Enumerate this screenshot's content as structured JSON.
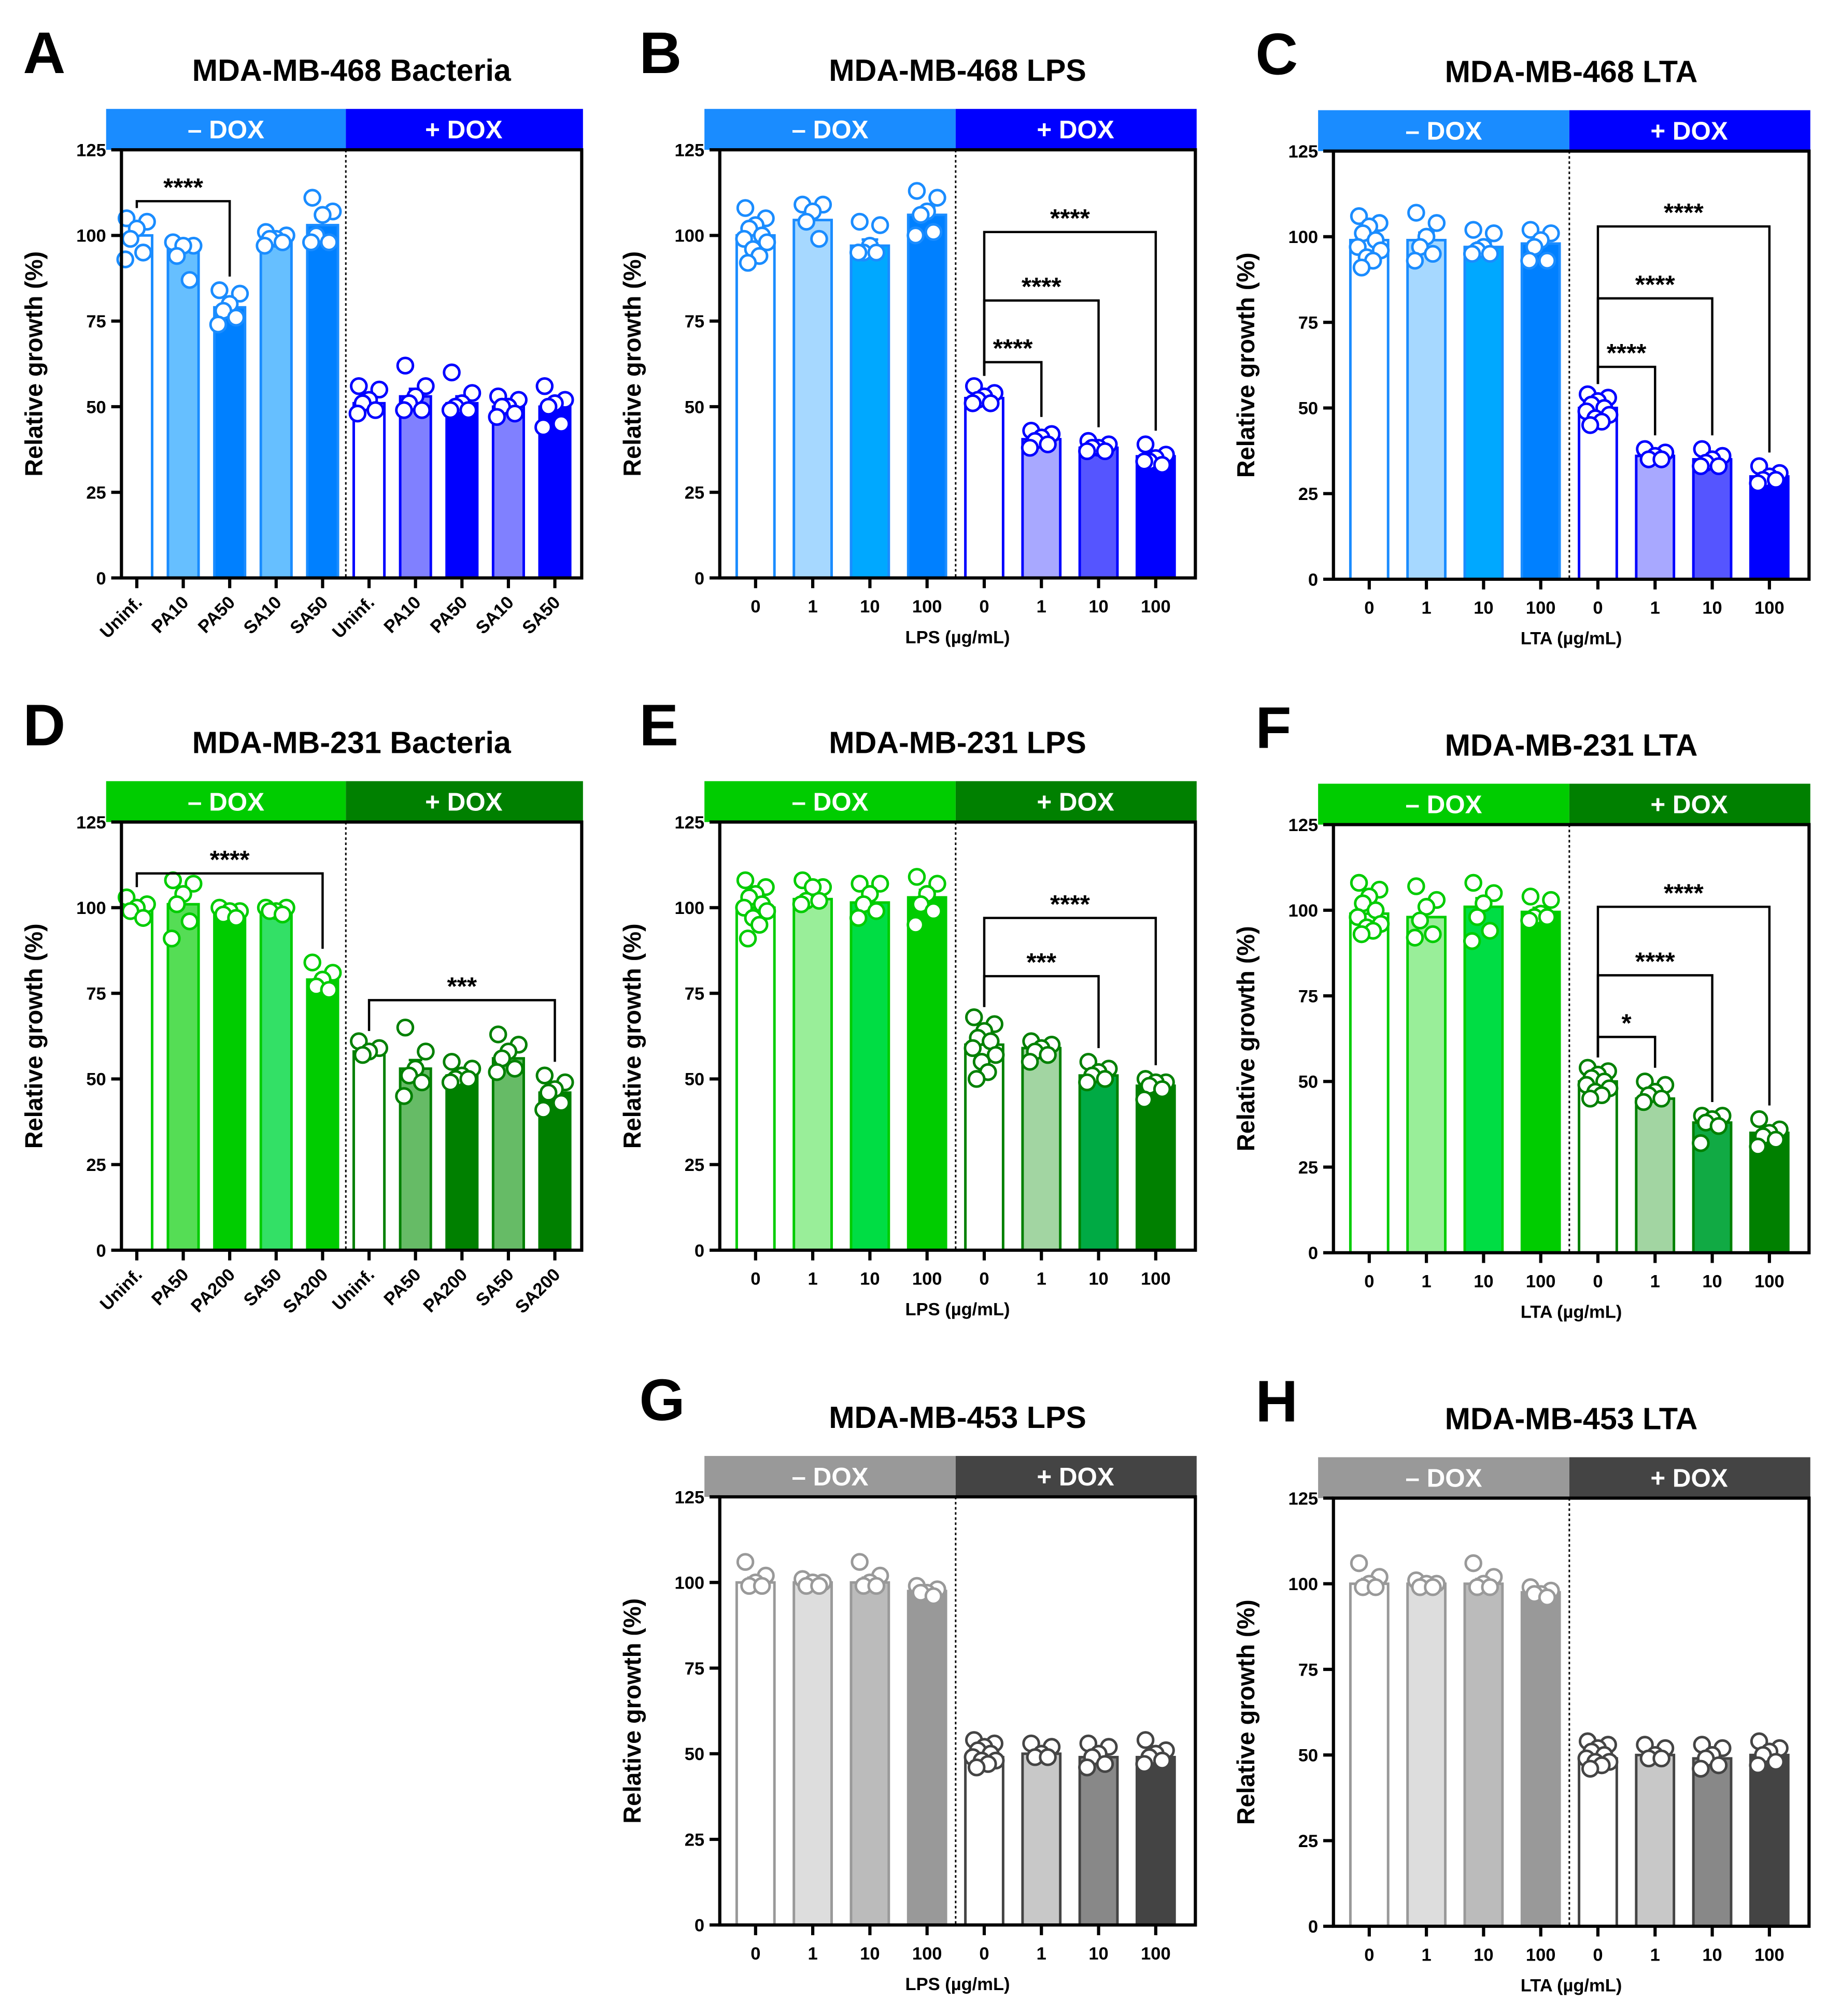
{
  "chart_data": [
    {
      "letter": "A",
      "type": "bar",
      "title": "MDA-MB-468 Bacteria",
      "header_labels": [
        "– DOX",
        "+ DOX"
      ],
      "header_colors": [
        "#1a8cff",
        "#0000ff"
      ],
      "split": 5,
      "categories": [
        "Uninf.",
        "PA10",
        "PA50",
        "SA10",
        "SA50",
        "Uninf.",
        "PA10",
        "PA50",
        "SA10",
        "SA50"
      ],
      "rotate_labels": true,
      "xlabel": "",
      "ylabel": "Relative growth (%)",
      "ylim": [
        0,
        125
      ],
      "yticks": [
        "0",
        "25",
        "50",
        "75",
        "100",
        "125"
      ],
      "means": [
        100,
        96,
        79,
        99,
        103,
        51,
        53,
        51,
        50,
        50
      ],
      "sem": [
        2,
        2,
        1.5,
        0.6,
        2,
        1.2,
        2.2,
        2,
        1,
        2
      ],
      "points": [
        [
          105,
          104,
          102,
          99,
          95,
          93
        ],
        [
          98,
          97,
          97,
          94,
          87
        ],
        [
          84,
          83,
          80,
          78,
          76,
          74
        ],
        [
          101,
          100,
          99,
          99,
          98,
          97
        ],
        [
          111,
          107,
          106,
          100,
          98,
          98
        ],
        [
          56,
          55,
          52,
          51,
          49,
          48
        ],
        [
          62,
          56,
          53,
          51,
          49,
          49
        ],
        [
          60,
          54,
          51,
          50,
          49,
          49
        ],
        [
          53,
          52,
          50,
          50,
          48,
          47
        ],
        [
          56,
          52,
          51,
          50,
          45,
          44
        ]
      ],
      "bar_fills": [
        "#ffffff",
        "#66bfff",
        "#0080ff",
        "#66bfff",
        "#0080ff",
        "#ffffff",
        "#8080ff",
        "#0000ff",
        "#8080ff",
        "#0000ff"
      ],
      "significance": [
        {
          "from": 0,
          "to": 2,
          "y": 110,
          "label": "****"
        }
      ]
    },
    {
      "letter": "B",
      "type": "bar",
      "title": "MDA-MB-468 LPS",
      "header_labels": [
        "– DOX",
        "+ DOX"
      ],
      "header_colors": [
        "#1a8cff",
        "#0000ff"
      ],
      "split": 4,
      "categories": [
        "0",
        "1",
        "10",
        "100",
        "0",
        "1",
        "10",
        "100"
      ],
      "rotate_labels": false,
      "xlabel": "LPS (µg/mL)",
      "ylabel": "Relative growth (%)",
      "ylim": [
        0,
        125
      ],
      "yticks": [
        "0",
        "25",
        "50",
        "75",
        "100",
        "125"
      ],
      "means": [
        100,
        104.5,
        97,
        106,
        52.5,
        40.5,
        38,
        35.5
      ],
      "sem": [
        1.6,
        2,
        1.8,
        2.2,
        0.8,
        0.8,
        0.6,
        0.9
      ],
      "points": [
        [
          108,
          105,
          103,
          102,
          100,
          99,
          98,
          96,
          94,
          92
        ],
        [
          109,
          109,
          107,
          104,
          99
        ],
        [
          104,
          103,
          97,
          95,
          95,
          95
        ],
        [
          113,
          111,
          107,
          106,
          101,
          100
        ],
        [
          56,
          54,
          53,
          52,
          51,
          51
        ],
        [
          43,
          42,
          41,
          40,
          39,
          38
        ],
        [
          40,
          39,
          38,
          38,
          37,
          37
        ],
        [
          39,
          36,
          35,
          34,
          33,
          34
        ]
      ],
      "bar_fills": [
        "#ffffff",
        "#a6d8ff",
        "#00a8ff",
        "#0080ff",
        "#ffffff",
        "#a8a8ff",
        "#5555ff",
        "#0000ff"
      ],
      "significance": [
        {
          "from": 4,
          "to": 5,
          "y": 63,
          "label": "****"
        },
        {
          "from": 4,
          "to": 6,
          "y": 81,
          "label": "****"
        },
        {
          "from": 4,
          "to": 7,
          "y": 101,
          "label": "****"
        }
      ]
    },
    {
      "letter": "C",
      "type": "bar",
      "title": "MDA-MB-468 LTA",
      "header_labels": [
        "– DOX",
        "+ DOX"
      ],
      "header_colors": [
        "#1a8cff",
        "#0000ff"
      ],
      "split": 4,
      "categories": [
        "0",
        "1",
        "10",
        "100",
        "0",
        "1",
        "10",
        "100"
      ],
      "rotate_labels": false,
      "xlabel": "LTA (µg/mL)",
      "ylabel": "Relative growth (%)",
      "ylim": [
        0,
        125
      ],
      "yticks": [
        "0",
        "25",
        "50",
        "75",
        "100",
        "125"
      ],
      "means": [
        99,
        99,
        97,
        98,
        50,
        36,
        35,
        30
      ],
      "sem": [
        1.5,
        2.2,
        1.3,
        1.7,
        1,
        0.6,
        0.9,
        0.8
      ],
      "points": [
        [
          106,
          104,
          103,
          101,
          99,
          97,
          96,
          94,
          93,
          91
        ],
        [
          107,
          104,
          100,
          97,
          95,
          93
        ],
        [
          102,
          101,
          97,
          96,
          95,
          95
        ],
        [
          102,
          101,
          99,
          97,
          93,
          93
        ],
        [
          54,
          53,
          52,
          51,
          50,
          49,
          48,
          47,
          46,
          45
        ],
        [
          38,
          37,
          36,
          35,
          35
        ],
        [
          38,
          36,
          35,
          34,
          33,
          33
        ],
        [
          33,
          31,
          30,
          29,
          29,
          28
        ]
      ],
      "bar_fills": [
        "#ffffff",
        "#a6d8ff",
        "#00a8ff",
        "#0080ff",
        "#ffffff",
        "#a8a8ff",
        "#5555ff",
        "#0000ff"
      ],
      "significance": [
        {
          "from": 4,
          "to": 5,
          "y": 62,
          "label": "****"
        },
        {
          "from": 4,
          "to": 6,
          "y": 82,
          "label": "****"
        },
        {
          "from": 4,
          "to": 7,
          "y": 103,
          "label": "****"
        }
      ]
    },
    {
      "letter": "D",
      "type": "bar",
      "title": "MDA-MB-231 Bacteria",
      "header_labels": [
        "– DOX",
        "+ DOX"
      ],
      "header_colors": [
        "#00cc00",
        "#008000"
      ],
      "split": 5,
      "categories": [
        "Uninf.",
        "PA50",
        "PA200",
        "SA50",
        "SA200",
        "Uninf.",
        "PA50",
        "PA200",
        "SA50",
        "SA200"
      ],
      "rotate_labels": true,
      "xlabel": "",
      "ylabel": "Relative growth (%)",
      "ylim": [
        0,
        125
      ],
      "yticks": [
        "0",
        "25",
        "50",
        "75",
        "100",
        "125"
      ],
      "means": [
        100,
        101,
        99,
        99,
        79,
        58,
        53,
        51,
        56,
        46
      ],
      "sem": [
        1,
        2.5,
        0.6,
        0.4,
        1.5,
        0.8,
        2.5,
        1,
        1.7,
        1.5
      ],
      "points": [
        [
          103,
          101,
          100,
          99,
          97
        ],
        [
          108,
          107,
          104,
          101,
          96,
          91
        ],
        [
          100,
          99,
          99,
          98,
          97
        ],
        [
          100,
          100,
          99,
          99,
          98
        ],
        [
          84,
          81,
          79,
          77,
          76
        ],
        [
          61,
          59,
          58,
          57
        ],
        [
          65,
          58,
          53,
          51,
          49,
          45
        ],
        [
          55,
          53,
          51,
          50,
          50,
          49
        ],
        [
          63,
          60,
          58,
          56,
          53,
          52
        ],
        [
          51,
          49,
          47,
          46,
          43,
          41
        ]
      ],
      "bar_fills": [
        "#ffffff",
        "#55dd55",
        "#00cc00",
        "#33e066",
        "#00cc00",
        "#ffffff",
        "#66bb66",
        "#008000",
        "#66bb66",
        "#008000"
      ],
      "significance": [
        {
          "from": 0,
          "to": 4,
          "y": 110,
          "label": "****"
        },
        {
          "from": 5,
          "to": 9,
          "y": 73,
          "label": "***"
        }
      ]
    },
    {
      "letter": "E",
      "type": "bar",
      "title": "MDA-MB-231 LPS",
      "header_labels": [
        "– DOX",
        "+ DOX"
      ],
      "header_colors": [
        "#00cc00",
        "#008000"
      ],
      "split": 4,
      "categories": [
        "0",
        "1",
        "10",
        "100",
        "0",
        "1",
        "10",
        "100"
      ],
      "rotate_labels": false,
      "xlabel": "LPS (µg/mL)",
      "ylabel": "Relative growth (%)",
      "ylim": [
        0,
        125
      ],
      "yticks": [
        "0",
        "25",
        "50",
        "75",
        "100",
        "125"
      ],
      "means": [
        100,
        102.5,
        101.5,
        103,
        60,
        59,
        51,
        48
      ],
      "sem": [
        1.6,
        1.2,
        1.8,
        2.2,
        1.8,
        0.9,
        0.9,
        0.9
      ],
      "points": [
        [
          108,
          106,
          104,
          103,
          101,
          100,
          99,
          97,
          95,
          91
        ],
        [
          108,
          106,
          106,
          102,
          102,
          101
        ],
        [
          107,
          107,
          104,
          101,
          99,
          97
        ],
        [
          109,
          107,
          104,
          101,
          99,
          95
        ],
        [
          68,
          66,
          64,
          62,
          61,
          59,
          57,
          55,
          52,
          50
        ],
        [
          61,
          60,
          59,
          58,
          57,
          55
        ],
        [
          55,
          53,
          52,
          51,
          50,
          49
        ],
        [
          50,
          49,
          49,
          48,
          47,
          44
        ]
      ],
      "bar_fills": [
        "#ffffff",
        "#99ee99",
        "#00dd44",
        "#00cc00",
        "#ffffff",
        "#a2d5a2",
        "#00aa44",
        "#008000"
      ],
      "significance": [
        {
          "from": 4,
          "to": 6,
          "y": 80,
          "label": "***"
        },
        {
          "from": 4,
          "to": 7,
          "y": 97,
          "label": "****"
        }
      ]
    },
    {
      "letter": "F",
      "type": "bar",
      "title": "MDA-MB-231 LTA",
      "header_labels": [
        "– DOX",
        "+ DOX"
      ],
      "header_colors": [
        "#00cc00",
        "#008000"
      ],
      "split": 4,
      "categories": [
        "0",
        "1",
        "10",
        "100",
        "0",
        "1",
        "10",
        "100"
      ],
      "rotate_labels": false,
      "xlabel": "LTA (µg/mL)",
      "ylabel": "Relative growth (%)",
      "ylim": [
        0,
        125
      ],
      "yticks": [
        "0",
        "25",
        "50",
        "75",
        "100",
        "125"
      ],
      "means": [
        99,
        98,
        101,
        99.5,
        50,
        45,
        38,
        35
      ],
      "sem": [
        1.5,
        2.5,
        2.5,
        1.2,
        1,
        1,
        1.2,
        1.2
      ],
      "points": [
        [
          108,
          106,
          104,
          102,
          100,
          98,
          96,
          95,
          94,
          93
        ],
        [
          107,
          103,
          101,
          97,
          93,
          92
        ],
        [
          108,
          105,
          102,
          98,
          94,
          91
        ],
        [
          104,
          103,
          99,
          98,
          98,
          97
        ],
        [
          54,
          53,
          52,
          51,
          50,
          49,
          48,
          47,
          46,
          45
        ],
        [
          50,
          49,
          47,
          46,
          45,
          44
        ],
        [
          40,
          40,
          39,
          38,
          37,
          32
        ],
        [
          39,
          36,
          35,
          34,
          33,
          31
        ]
      ],
      "bar_fills": [
        "#ffffff",
        "#99ee99",
        "#00dd44",
        "#00cc00",
        "#ffffff",
        "#a2d5a2",
        "#11aa44",
        "#008000"
      ],
      "significance": [
        {
          "from": 4,
          "to": 5,
          "y": 63,
          "label": "*"
        },
        {
          "from": 4,
          "to": 6,
          "y": 81,
          "label": "****"
        },
        {
          "from": 4,
          "to": 7,
          "y": 101,
          "label": "****"
        }
      ]
    },
    {
      "letter": "G",
      "type": "bar",
      "title": "MDA-MB-453 LPS",
      "header_labels": [
        "– DOX",
        "+ DOX"
      ],
      "header_colors": [
        "#999999",
        "#444444"
      ],
      "split": 4,
      "categories": [
        "0",
        "1",
        "10",
        "100",
        "0",
        "1",
        "10",
        "100"
      ],
      "rotate_labels": false,
      "xlabel": "LPS (µg/mL)",
      "ylabel": "Relative growth (%)",
      "ylim": [
        0,
        125
      ],
      "yticks": [
        "0",
        "25",
        "50",
        "75",
        "100",
        "125"
      ],
      "means": [
        100,
        100,
        100,
        97.5,
        49,
        50,
        49,
        49
      ],
      "sem": [
        1.4,
        0.5,
        1.4,
        0.6,
        0.8,
        0.8,
        1,
        1.1
      ],
      "points": [
        [
          106,
          102,
          100,
          99,
          99
        ],
        [
          101,
          100,
          100,
          99,
          99
        ],
        [
          106,
          102,
          100,
          99,
          99
        ],
        [
          99,
          98,
          97,
          97,
          96
        ],
        [
          54,
          53,
          52,
          51,
          50,
          49,
          48,
          48,
          47,
          46
        ],
        [
          53,
          52,
          50,
          49,
          49
        ],
        [
          53,
          52,
          50,
          49,
          47,
          46
        ],
        [
          54,
          51,
          50,
          49,
          48,
          47
        ]
      ],
      "bar_fills": [
        "#ffffff",
        "#dddddd",
        "#bbbbbb",
        "#999999",
        "#ffffff",
        "#c8c8c8",
        "#888888",
        "#444444"
      ],
      "significance": []
    },
    {
      "letter": "H",
      "type": "bar",
      "title": "MDA-MB-453 LTA",
      "header_labels": [
        "– DOX",
        "+ DOX"
      ],
      "header_colors": [
        "#999999",
        "#444444"
      ],
      "split": 4,
      "categories": [
        "0",
        "1",
        "10",
        "100",
        "0",
        "1",
        "10",
        "100"
      ],
      "rotate_labels": false,
      "xlabel": "LTA (µg/mL)",
      "ylabel": "Relative growth (%)",
      "ylim": [
        0,
        125
      ],
      "yticks": [
        "0",
        "25",
        "50",
        "75",
        "100",
        "125"
      ],
      "means": [
        100,
        100,
        100,
        97.5,
        49,
        50,
        49,
        50
      ],
      "sem": [
        1.4,
        0.5,
        1.4,
        0.6,
        0.8,
        0.8,
        1,
        1.1
      ],
      "points": [
        [
          106,
          102,
          100,
          99,
          99
        ],
        [
          101,
          100,
          100,
          99,
          99
        ],
        [
          106,
          102,
          100,
          99,
          99
        ],
        [
          99,
          98,
          97,
          97,
          96
        ],
        [
          54,
          53,
          52,
          51,
          50,
          49,
          48,
          48,
          47,
          46
        ],
        [
          53,
          52,
          50,
          49,
          49
        ],
        [
          53,
          52,
          50,
          49,
          47,
          46
        ],
        [
          54,
          52,
          51,
          50,
          48,
          47
        ]
      ],
      "bar_fills": [
        "#ffffff",
        "#dddddd",
        "#bbbbbb",
        "#999999",
        "#ffffff",
        "#c8c8c8",
        "#888888",
        "#444444"
      ],
      "significance": []
    }
  ]
}
